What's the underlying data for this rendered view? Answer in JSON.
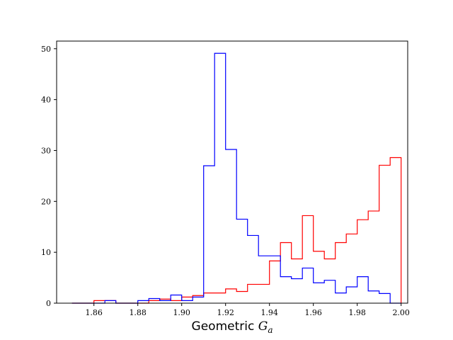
{
  "chart_data": {
    "type": "histogram",
    "title": "",
    "xlabel": "Geometric ",
    "xlabel_symbol": "G",
    "xlabel_subscript": "a",
    "ylabel": "",
    "xlim": [
      1.843,
      2.003
    ],
    "ylim": [
      0,
      51.5
    ],
    "xticks": [
      1.86,
      1.88,
      1.9,
      1.92,
      1.94,
      1.96,
      1.98,
      2.0
    ],
    "xtick_labels": [
      "1.86",
      "1.88",
      "1.90",
      "1.92",
      "1.94",
      "1.96",
      "1.98",
      "2.00"
    ],
    "yticks": [
      0,
      10,
      20,
      30,
      40,
      50
    ],
    "ytick_labels": [
      "0",
      "10",
      "20",
      "30",
      "40",
      "50"
    ],
    "grid": false,
    "legend": "none",
    "bin_edges": [
      1.85,
      1.855,
      1.86,
      1.865,
      1.87,
      1.875,
      1.88,
      1.885,
      1.89,
      1.895,
      1.9,
      1.905,
      1.91,
      1.915,
      1.92,
      1.925,
      1.93,
      1.935,
      1.94,
      1.945,
      1.95,
      1.955,
      1.96,
      1.965,
      1.97,
      1.975,
      1.98,
      1.985,
      1.99,
      1.995
    ],
    "series": [
      {
        "color": "#ff0000",
        "values": [
          0.0,
          0.0,
          0.5,
          0.5,
          0.0,
          0.0,
          0.0,
          0.5,
          0.8,
          0.5,
          1.2,
          1.5,
          2.0,
          2.0,
          2.8,
          2.3,
          3.7,
          3.7,
          8.3,
          11.9,
          8.7,
          17.2,
          10.2,
          8.7,
          11.9,
          13.6,
          16.4,
          18.1,
          27.1,
          28.6
        ]
      },
      {
        "color": "#0000ff",
        "values": [
          0.0,
          0.0,
          0.0,
          0.5,
          0.0,
          0.0,
          0.5,
          0.9,
          0.5,
          1.6,
          0.5,
          1.2,
          27.0,
          49.1,
          30.2,
          16.5,
          13.3,
          9.3,
          9.3,
          5.2,
          4.8,
          6.9,
          4.0,
          4.5,
          2.0,
          3.2,
          5.2,
          2.4,
          1.9,
          0.0
        ]
      }
    ]
  }
}
